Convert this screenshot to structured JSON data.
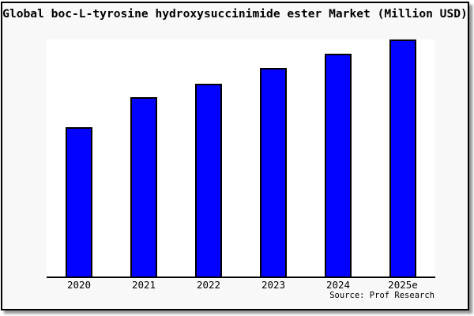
{
  "chart_data": {
    "type": "bar",
    "title": "Global boc-L-tyrosine hydroxysuccinimide ester Market (Million USD)",
    "categories": [
      "2020",
      "2021",
      "2022",
      "2023",
      "2024",
      "2025e"
    ],
    "values": [
      63,
      75.5,
      81.5,
      88,
      94,
      100
    ],
    "value_note": "y-axis has no ticks or labels; values estimated as relative bar heights with tallest bar (2025e) = 100",
    "xlabel": "",
    "ylabel": "",
    "ylim": [
      0,
      100
    ],
    "grid": false,
    "legend": false,
    "source_credit": "Source: Prof Research",
    "colors": {
      "bar_fill": "#0202fe",
      "bar_border": "#000000",
      "frame_background": "#f8f8f8",
      "plot_background": "#ffffff",
      "axis_line": "#000000",
      "text": "#000000"
    }
  }
}
